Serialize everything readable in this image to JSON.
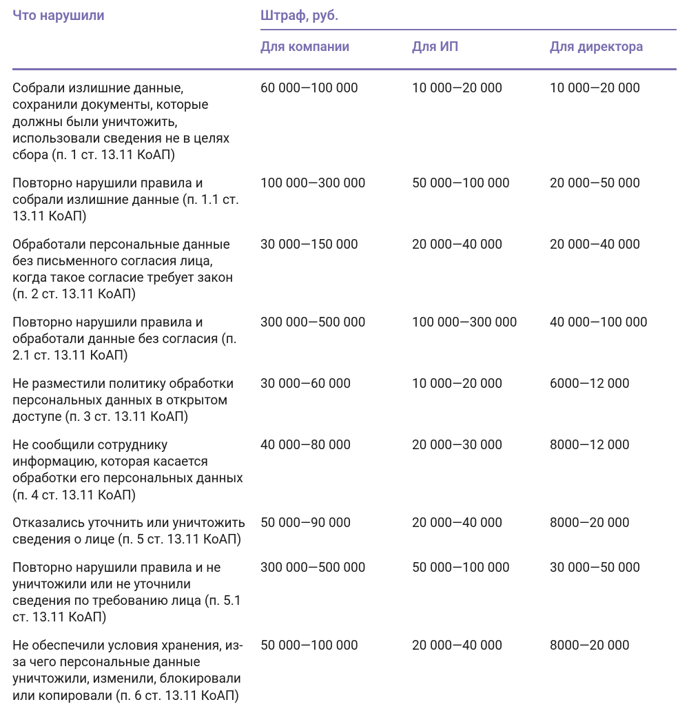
{
  "colors": {
    "accent": "#7a6eb0",
    "text": "#1a1a1a",
    "rule": "#7a6eb0"
  },
  "headers": {
    "violation": "Что нарушили",
    "fine_group": "Штраф, руб.",
    "company": "Для компании",
    "ip": "Для ИП",
    "director": "Для директора"
  },
  "rows": [
    {
      "violation": "Собрали излишние данные, сохранили документы, которые должны были уничтожить, использовали сведения не в целях сбора (п. 1 ст. 13.11 КоАП)",
      "company": "60 000—100 000",
      "ip": "10 000—20 000",
      "director": "10 000—20 000"
    },
    {
      "violation": "Повторно нарушили правила и собрали излишние данные (п. 1.1 ст. 13.11 КоАП)",
      "company": "100 000—300 000",
      "ip": "50 000—100 000",
      "director": "20 000—50 000"
    },
    {
      "violation": "Обработали персональные данные без письменного согласия лица, когда такое согласие требует закон (п. 2 ст. 13.11 КоАП)",
      "company": "30 000—150 000",
      "ip": "20 000—40 000",
      "director": "20 000—40 000"
    },
    {
      "violation": "Повторно нарушили правила и обработали данные без согласия (п. 2.1 ст. 13.11 КоАП)",
      "company": "300 000—500 000",
      "ip": "100 000—300 000",
      "director": "40 000—100 000"
    },
    {
      "violation": "Не разместили политику обработки персональных данных в открытом доступе (п. 3 ст. 13.11 КоАП)",
      "company": "30 000—60 000",
      "ip": "10 000—20 000",
      "director": "6000—12 000"
    },
    {
      "violation": "Не сообщили сотруднику информацию, которая касается обработки его персональных данных (п. 4 ст. 13.11 КоАП)",
      "company": "40 000—80 000",
      "ip": "20 000—30 000",
      "director": "8000—12 000"
    },
    {
      "violation": "Отказались уточнить или уничтожить сведения о лице (п. 5 ст. 13.11 КоАП)",
      "company": "50 000—90 000",
      "ip": "20 000—40 000",
      "director": "8000—20 000"
    },
    {
      "violation": "Повторно нарушили правила и не уничтожили или не уточнили сведения по требованию лица (п. 5.1 ст. 13.11 КоАП)",
      "company": "300 000—500 000",
      "ip": "50 000—100 000",
      "director": "30 000—50 000"
    },
    {
      "violation": "Не обеспечили условия хранения, из-за чего персональные данные уничтожили, изменили, блокировали или копировали (п. 6 ст. 13.11 КоАП)",
      "company": "50 000—100 000",
      "ip": "20 000—40 000",
      "director": "8000—20 000"
    }
  ]
}
